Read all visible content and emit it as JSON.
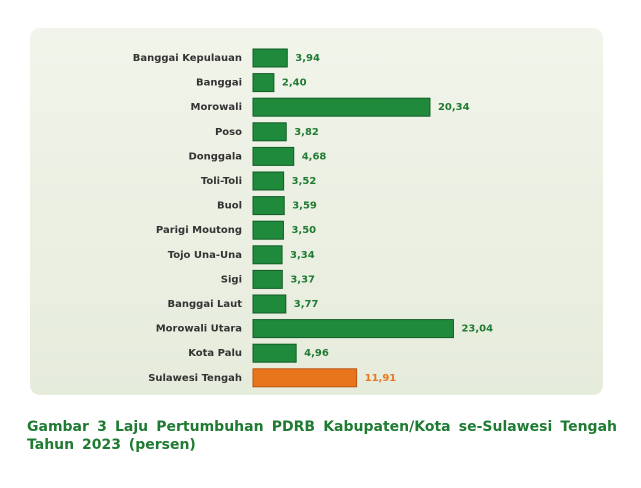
{
  "chart_data": {
    "type": "barh",
    "title": "Gambar 3  Laju Pertumbuhan  PDRB Kabupaten/Kota se-Sulawesi Tengah Tahun 2023 (persen)",
    "categories": [
      "Banggai Kepulauan",
      "Banggai",
      "Morowali",
      "Poso",
      "Donggala",
      "Toli-Toli",
      "Buol",
      "Parigi Moutong",
      "Tojo Una-Una",
      "Sigi",
      "Banggai Laut",
      "Morowali Utara",
      "Kota Palu",
      "Sulawesi Tengah"
    ],
    "values": [
      3.94,
      2.4,
      20.34,
      3.82,
      4.68,
      3.52,
      3.59,
      3.5,
      3.34,
      3.37,
      3.77,
      23.04,
      4.96,
      11.91
    ],
    "value_labels": [
      "3,94",
      "2,40",
      "20,34",
      "3,82",
      "4,68",
      "3,52",
      "3,59",
      "3,50",
      "3,34",
      "3,37",
      "3,77",
      "23,04",
      "4,96",
      "11,91"
    ],
    "colors": [
      "#1f8a3c",
      "#1f8a3c",
      "#1f8a3c",
      "#1f8a3c",
      "#1f8a3c",
      "#1f8a3c",
      "#1f8a3c",
      "#1f8a3c",
      "#1f8a3c",
      "#1f8a3c",
      "#1f8a3c",
      "#1f8a3c",
      "#1f8a3c",
      "#e8741c"
    ]
  }
}
